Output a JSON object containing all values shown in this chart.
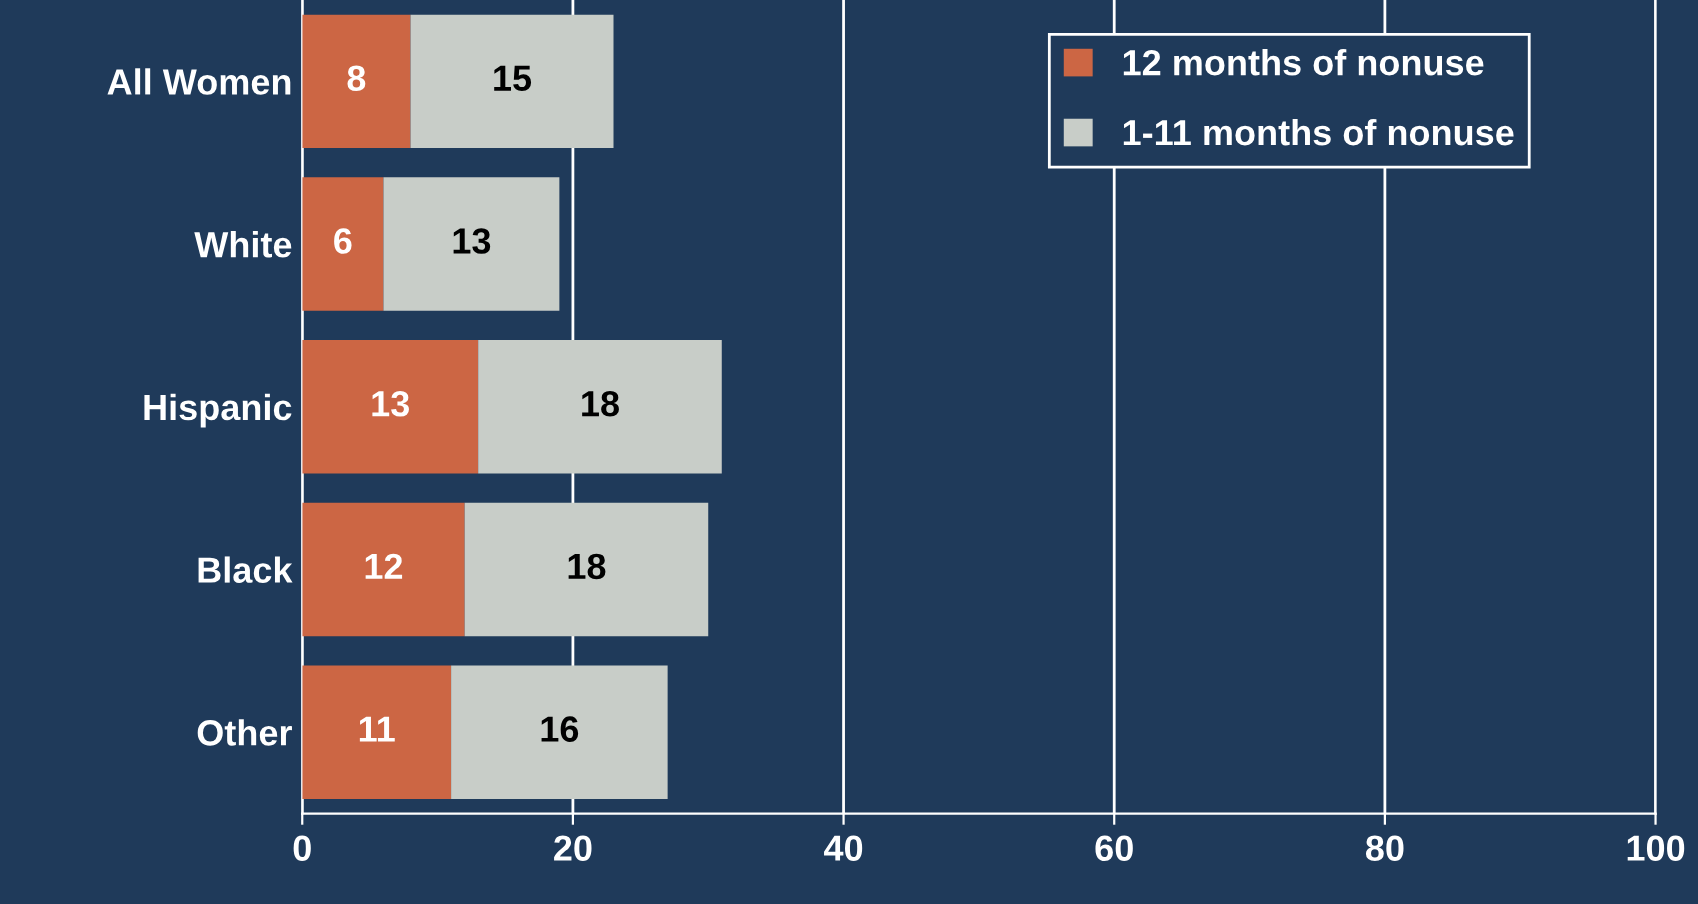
{
  "chart_data": {
    "type": "bar",
    "orientation": "horizontal",
    "stacked": true,
    "categories": [
      "All Women",
      "White",
      "Hispanic",
      "Black",
      "Other"
    ],
    "series": [
      {
        "name": "12 months of nonuse",
        "color": "#cc6644",
        "values": [
          8,
          6,
          13,
          12,
          11
        ]
      },
      {
        "name": "1-11 months of nonuse",
        "color": "#c8cdc8",
        "values": [
          15,
          13,
          18,
          18,
          16
        ]
      }
    ],
    "xlim": [
      0,
      100
    ],
    "xticks": [
      0,
      20,
      40,
      60,
      80,
      100
    ],
    "grid": "x",
    "legend": "top right",
    "data_labels": true
  }
}
